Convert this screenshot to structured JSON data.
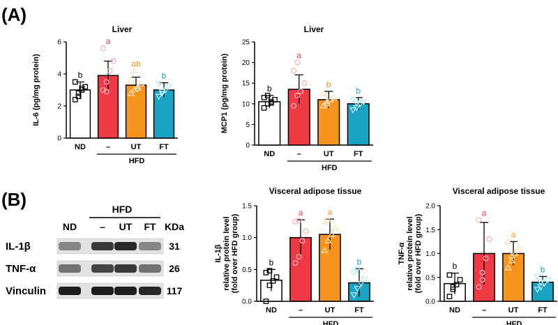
{
  "panel_a_label": "(A)",
  "panel_b_label": "(B)",
  "western_blot": {
    "hfd_label": "HFD",
    "lane_labels": [
      "ND",
      "–",
      "UT",
      "FT"
    ],
    "kda_label": "KDa",
    "rows": [
      {
        "protein": "IL-1β",
        "kda": "31",
        "intensities": [
          0.35,
          0.75,
          0.85,
          0.35
        ]
      },
      {
        "protein": "TNF-α",
        "kda": "26",
        "intensities": [
          0.45,
          0.7,
          0.75,
          0.45
        ]
      },
      {
        "protein": "Vinculin",
        "kda": "117",
        "intensities": [
          0.9,
          0.9,
          0.9,
          0.85
        ]
      }
    ]
  },
  "colors": {
    "ND": "#000000",
    "HFD": "#ef3a45",
    "UT": "#f7941d",
    "FT": "#1aa3c2"
  },
  "chart_data": [
    {
      "type": "bar",
      "title": "Liver",
      "ylabel": "IL-6 (pg/mg protein)",
      "ylim": [
        0,
        6
      ],
      "yticks": [
        "0",
        "2",
        "4",
        "6"
      ],
      "categories": [
        "ND",
        "–",
        "UT",
        "FT"
      ],
      "group_label": "HFD",
      "values": [
        3.0,
        3.9,
        3.3,
        3.0
      ],
      "errors": [
        0.5,
        0.9,
        0.5,
        0.45
      ],
      "letters": [
        "b",
        "a",
        "ab",
        "b"
      ],
      "points": [
        [
          2.4,
          2.8,
          3.0,
          3.2,
          3.5,
          2.6,
          3.1
        ],
        [
          3.0,
          3.5,
          4.2,
          4.8,
          5.6,
          2.9
        ],
        [
          2.8,
          3.0,
          3.2,
          3.4,
          3.6,
          4.2,
          3.1
        ],
        [
          2.6,
          2.9,
          3.0,
          3.2,
          3.4,
          2.8
        ]
      ]
    },
    {
      "type": "bar",
      "title": "Liver",
      "ylabel": "MCP1 (pg/mg protein)",
      "ylim": [
        0,
        25
      ],
      "yticks": [
        "0",
        "5",
        "10",
        "15",
        "20",
        "25"
      ],
      "categories": [
        "ND",
        "–",
        "UT",
        "FT"
      ],
      "group_label": "HFD",
      "values": [
        10.5,
        13.5,
        11.0,
        10.0
      ],
      "errors": [
        1.5,
        3.5,
        2.0,
        1.5
      ],
      "letters": [
        "b",
        "a",
        "b",
        "b"
      ],
      "points": [
        [
          9.0,
          10.0,
          10.5,
          11.0,
          11.5,
          12.0,
          10.2
        ],
        [
          9.5,
          12.0,
          13.0,
          15.0,
          18.0,
          20.0
        ],
        [
          9.5,
          10.0,
          11.0,
          11.5,
          12.5,
          10.5
        ],
        [
          8.5,
          9.0,
          10.0,
          10.5,
          11.0,
          10.2
        ]
      ]
    },
    {
      "type": "bar",
      "title": "Visceral adipose tissue",
      "ylabel": [
        "IL-1β",
        "relative protein level",
        "(fold over HFD group)"
      ],
      "ylim": [
        0,
        1.5
      ],
      "yticks": [
        "0.0",
        "0.5",
        "1.0",
        "1.5"
      ],
      "categories": [
        "ND",
        "–",
        "UT",
        "FT"
      ],
      "group_label": "HFD",
      "values": [
        0.33,
        1.0,
        1.05,
        0.29
      ],
      "errors": [
        0.17,
        0.28,
        0.24,
        0.22
      ],
      "letters": [
        "b",
        "a",
        "a",
        "b"
      ],
      "points": [
        [
          0.0,
          0.25,
          0.32,
          0.38,
          0.45,
          0.48
        ],
        [
          0.6,
          0.7,
          0.95,
          1.1,
          1.25,
          1.27
        ],
        [
          0.8,
          0.95,
          1.05,
          1.15,
          1.25,
          1.28
        ],
        [
          0.1,
          0.2,
          0.28,
          0.35,
          0.45,
          0.5
        ]
      ]
    },
    {
      "type": "bar",
      "title": "Visceral adipose tissue",
      "ylabel": [
        "TNF-α",
        "relative protein level",
        "(fold over HFD group)"
      ],
      "ylim": [
        0,
        2.0
      ],
      "yticks": [
        "0.0",
        "0.5",
        "1.0",
        "1.5",
        "2.0"
      ],
      "categories": [
        "ND",
        "–",
        "UT",
        "FT"
      ],
      "group_label": "HFD",
      "values": [
        0.37,
        1.0,
        1.0,
        0.4
      ],
      "errors": [
        0.22,
        0.65,
        0.25,
        0.12
      ],
      "letters": [
        "b",
        "a",
        "a",
        "b"
      ],
      "points": [
        [
          0.1,
          0.25,
          0.35,
          0.45,
          0.55,
          0.3
        ],
        [
          0.3,
          0.45,
          0.9,
          1.3,
          1.7,
          0.6
        ],
        [
          0.7,
          0.85,
          1.0,
          1.1,
          1.25,
          0.95
        ],
        [
          0.25,
          0.3,
          0.38,
          0.45,
          0.52,
          0.4
        ]
      ]
    }
  ]
}
